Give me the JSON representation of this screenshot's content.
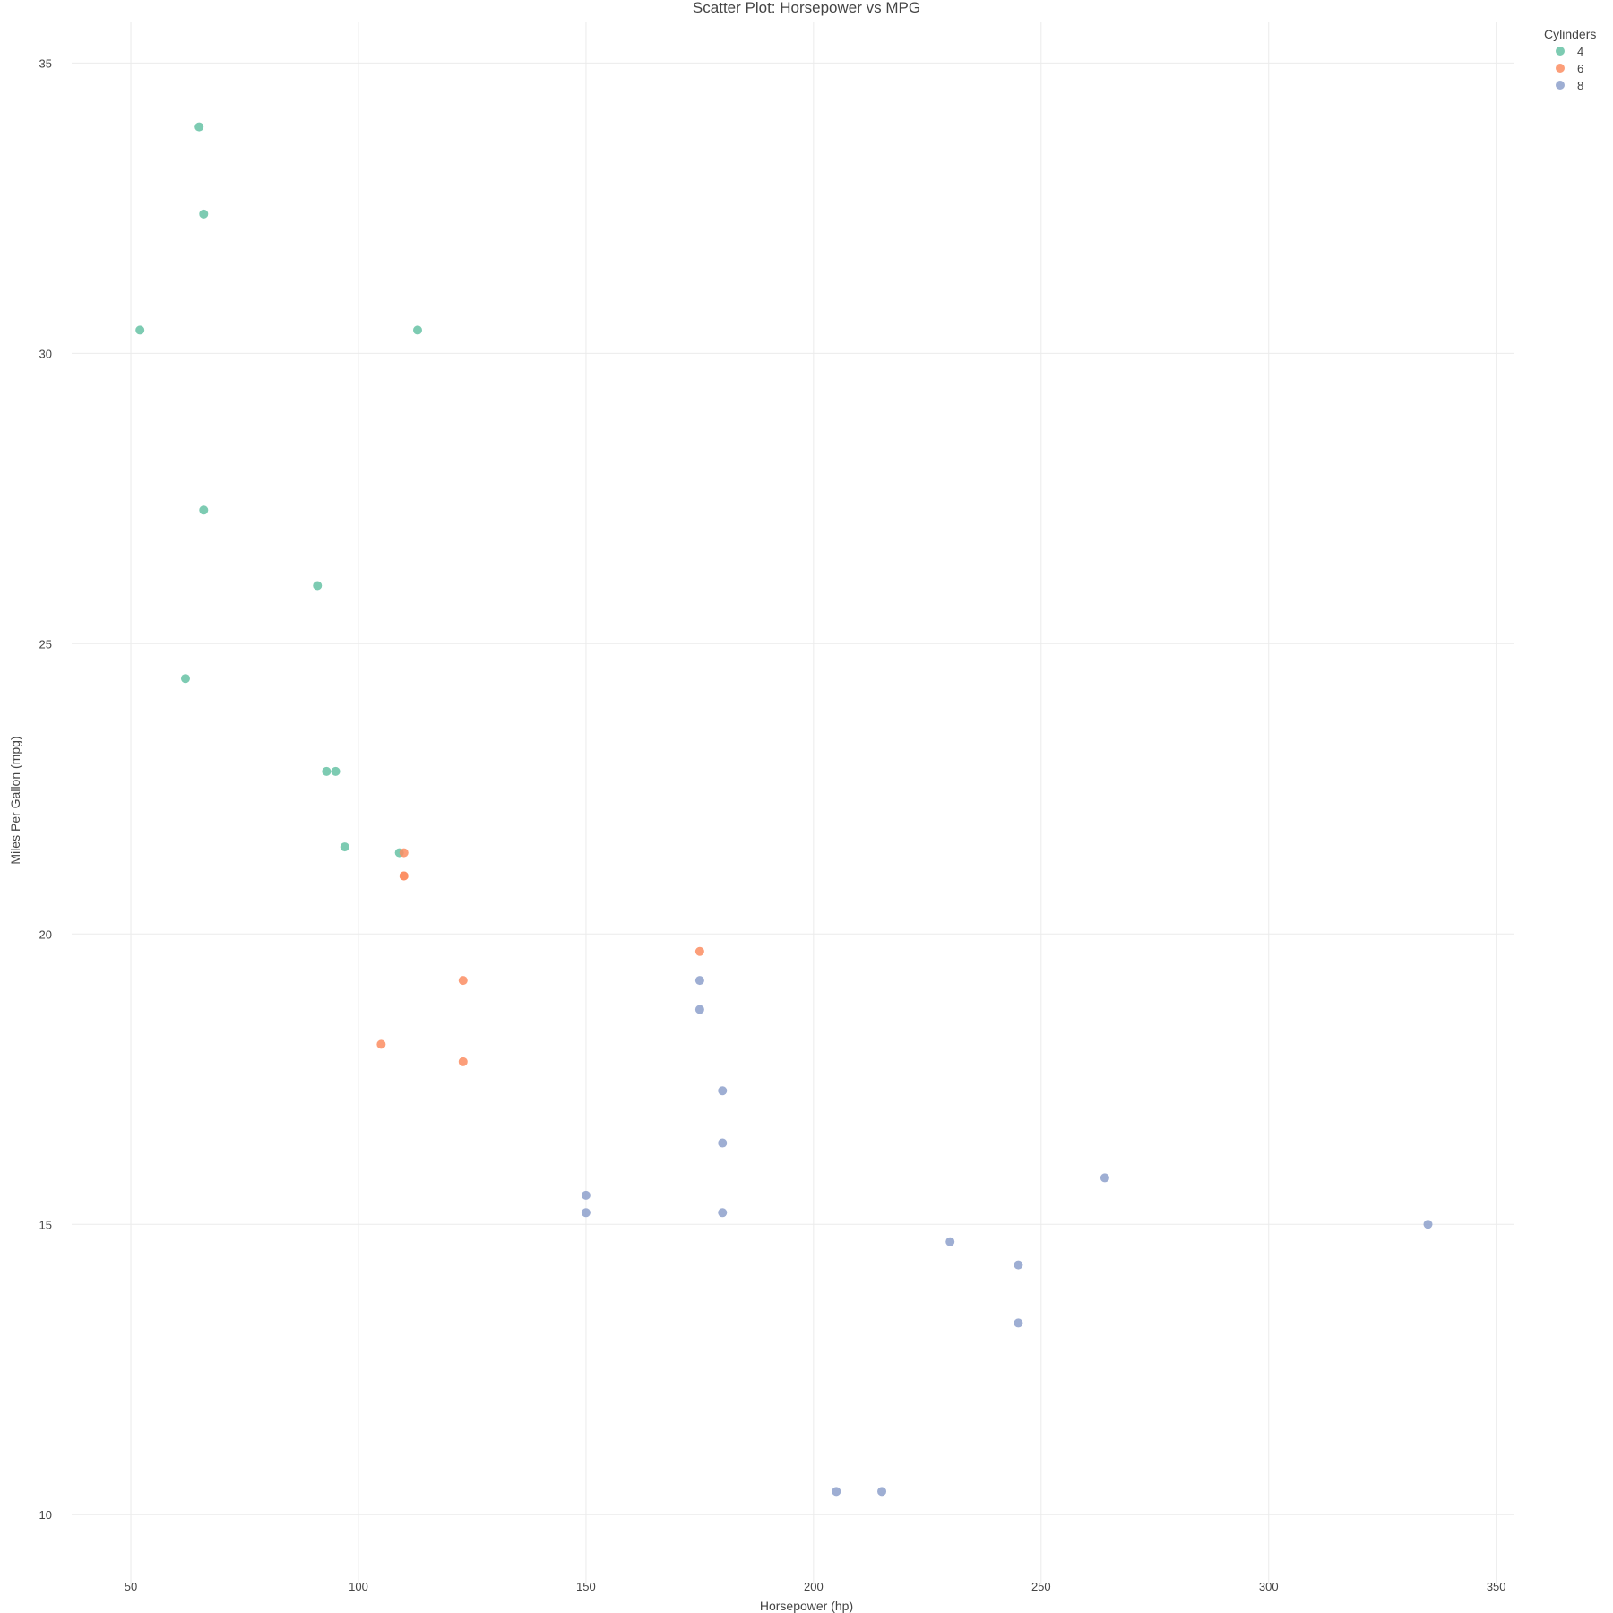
{
  "chart_data": {
    "type": "scatter",
    "title": "Scatter Plot: Horsepower vs MPG",
    "xlabel": "Horsepower (hp)",
    "ylabel": "Miles Per Gallon (mpg)",
    "xlim": [
      37,
      354
    ],
    "ylim": [
      8.8,
      35.7
    ],
    "x_ticks": [
      50,
      100,
      150,
      200,
      250,
      300,
      350
    ],
    "y_ticks": [
      10,
      15,
      20,
      25,
      30,
      35
    ],
    "grid": true,
    "legend": {
      "title": "Cylinders",
      "placement": "top-right"
    },
    "series": [
      {
        "name": "4",
        "color": "#66c2a5",
        "points": [
          {
            "x": 93,
            "y": 22.8
          },
          {
            "x": 62,
            "y": 24.4
          },
          {
            "x": 95,
            "y": 22.8
          },
          {
            "x": 66,
            "y": 32.4
          },
          {
            "x": 52,
            "y": 30.4
          },
          {
            "x": 65,
            "y": 33.9
          },
          {
            "x": 97,
            "y": 21.5
          },
          {
            "x": 66,
            "y": 27.3
          },
          {
            "x": 91,
            "y": 26.0
          },
          {
            "x": 113,
            "y": 30.4
          },
          {
            "x": 109,
            "y": 21.4
          }
        ]
      },
      {
        "name": "6",
        "color": "#fc8d62",
        "points": [
          {
            "x": 110,
            "y": 21.0
          },
          {
            "x": 110,
            "y": 21.0
          },
          {
            "x": 110,
            "y": 21.4
          },
          {
            "x": 105,
            "y": 18.1
          },
          {
            "x": 123,
            "y": 19.2
          },
          {
            "x": 123,
            "y": 17.8
          },
          {
            "x": 175,
            "y": 19.7
          }
        ]
      },
      {
        "name": "8",
        "color": "#8da0cb",
        "points": [
          {
            "x": 175,
            "y": 18.7
          },
          {
            "x": 245,
            "y": 14.3
          },
          {
            "x": 180,
            "y": 16.4
          },
          {
            "x": 180,
            "y": 17.3
          },
          {
            "x": 180,
            "y": 15.2
          },
          {
            "x": 205,
            "y": 10.4
          },
          {
            "x": 215,
            "y": 10.4
          },
          {
            "x": 230,
            "y": 14.7
          },
          {
            "x": 150,
            "y": 15.5
          },
          {
            "x": 150,
            "y": 15.2
          },
          {
            "x": 245,
            "y": 13.3
          },
          {
            "x": 175,
            "y": 19.2
          },
          {
            "x": 264,
            "y": 15.8
          },
          {
            "x": 335,
            "y": 15.0
          }
        ]
      }
    ]
  }
}
